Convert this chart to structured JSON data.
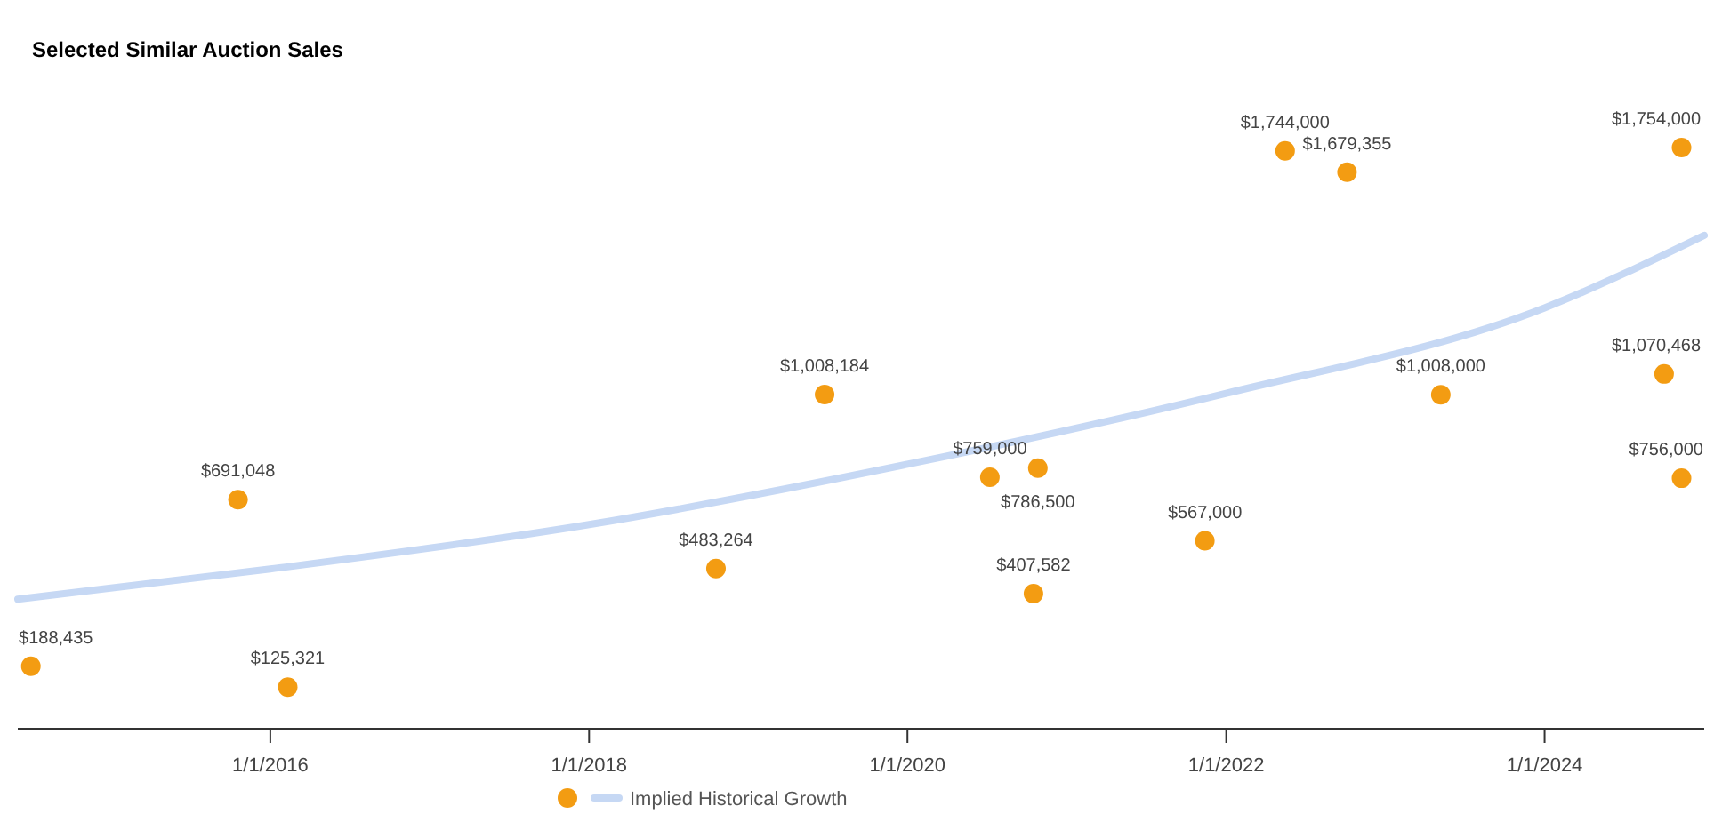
{
  "chart_data": {
    "type": "scatter",
    "title": "Selected Similar Auction Sales",
    "xlim": [
      "2014-06-01",
      "2025-01-01"
    ],
    "xticks": [
      {
        "value": "2016-01-01",
        "label": "1/1/2016"
      },
      {
        "value": "2018-01-01",
        "label": "1/1/2018"
      },
      {
        "value": "2020-01-01",
        "label": "1/1/2020"
      },
      {
        "value": "2022-01-01",
        "label": "1/1/2022"
      },
      {
        "value": "2024-01-01",
        "label": "1/1/2024"
      }
    ],
    "tick_labels": "x",
    "grid": false,
    "legend": "bottom",
    "series": [
      {
        "marker": "circle",
        "color": "#f39c12",
        "x": [
          "2014-07-01",
          "2015-10-19",
          "2016-02-10",
          "2018-10-19",
          "2019-06-25",
          "2020-07-08",
          "2020-10-26",
          "2020-10-16",
          "2021-11-13",
          "2022-05-16",
          "2022-10-05",
          "2023-05-08",
          "2024-10-01",
          "2024-11-10",
          "2024-11-10"
        ],
        "values": [
          188435,
          691048,
          125321,
          483264,
          1008184,
          759000,
          786500,
          407582,
          567000,
          1744000,
          1679355,
          1008000,
          1070468,
          756000,
          1754000
        ],
        "value_labels": [
          "$188,435",
          "$691,048",
          "$125,321",
          "$483,264",
          "$1,008,184",
          "$759,000",
          "$786,500",
          "$407,582",
          "$567,000",
          "$1,744,000",
          "$1,679,355",
          "$1,008,000",
          "$1,070,468",
          "$756,000",
          "$1,754,000"
        ]
      },
      {
        "type": "line",
        "name": "Implied Historical Growth",
        "color": "#c6d8f4",
        "x": [
          "2014-06-01",
          "2016-01-01",
          "2018-01-01",
          "2020-01-01",
          "2022-01-01",
          "2024-01-01",
          "2025-01-01"
        ],
        "values": [
          391000,
          482000,
          616000,
          798000,
          1012000,
          1270000,
          1489000
        ]
      }
    ]
  }
}
